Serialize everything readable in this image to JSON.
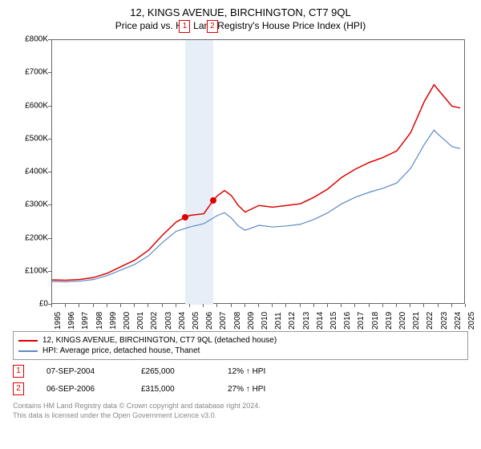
{
  "title": "12, KINGS AVENUE, BIRCHINGTON, CT7 9QL",
  "subtitle": "Price paid vs. HM Land Registry's House Price Index (HPI)",
  "chart": {
    "type": "line",
    "xlim": [
      1995,
      2025
    ],
    "ylim": [
      0,
      800000
    ],
    "ytick_step": 100000,
    "yticks": [
      "£0",
      "£100K",
      "£200K",
      "£300K",
      "£400K",
      "£500K",
      "£600K",
      "£700K",
      "£800K"
    ],
    "xticks": [
      1995,
      1996,
      1997,
      1998,
      1999,
      2000,
      2001,
      2002,
      2003,
      2004,
      2005,
      2006,
      2007,
      2008,
      2009,
      2010,
      2011,
      2012,
      2013,
      2014,
      2015,
      2016,
      2017,
      2018,
      2019,
      2020,
      2021,
      2022,
      2023,
      2024,
      2025
    ],
    "background_color": "#ffffff",
    "axis_color": "#666666",
    "highlight_band": {
      "start": 2004.68,
      "end": 2006.68,
      "color": "#e8eef7"
    },
    "series": [
      {
        "name": "property",
        "label": "12, KINGS AVENUE, BIRCHINGTON, CT7 9QL (detached house)",
        "color": "#dd0000",
        "width": 1.5,
        "data": [
          [
            1995,
            75000
          ],
          [
            1996,
            74000
          ],
          [
            1997,
            76000
          ],
          [
            1998,
            82000
          ],
          [
            1999,
            95000
          ],
          [
            2000,
            115000
          ],
          [
            2001,
            135000
          ],
          [
            2002,
            165000
          ],
          [
            2003,
            210000
          ],
          [
            2004,
            250000
          ],
          [
            2004.68,
            265000
          ],
          [
            2005,
            270000
          ],
          [
            2006,
            275000
          ],
          [
            2006.68,
            315000
          ],
          [
            2007,
            330000
          ],
          [
            2007.5,
            345000
          ],
          [
            2008,
            330000
          ],
          [
            2008.5,
            300000
          ],
          [
            2009,
            280000
          ],
          [
            2010,
            300000
          ],
          [
            2011,
            295000
          ],
          [
            2012,
            300000
          ],
          [
            2013,
            305000
          ],
          [
            2014,
            325000
          ],
          [
            2015,
            350000
          ],
          [
            2016,
            385000
          ],
          [
            2017,
            410000
          ],
          [
            2018,
            430000
          ],
          [
            2019,
            445000
          ],
          [
            2020,
            465000
          ],
          [
            2021,
            520000
          ],
          [
            2022,
            615000
          ],
          [
            2022.7,
            665000
          ],
          [
            2023,
            650000
          ],
          [
            2024,
            600000
          ],
          [
            2024.6,
            595000
          ]
        ]
      },
      {
        "name": "hpi",
        "label": "HPI: Average price, detached house, Thanet",
        "color": "#5b8ac6",
        "width": 1.2,
        "data": [
          [
            1995,
            70000
          ],
          [
            1996,
            69000
          ],
          [
            1997,
            71000
          ],
          [
            1998,
            76000
          ],
          [
            1999,
            88000
          ],
          [
            2000,
            105000
          ],
          [
            2001,
            122000
          ],
          [
            2002,
            148000
          ],
          [
            2003,
            188000
          ],
          [
            2004,
            222000
          ],
          [
            2005,
            235000
          ],
          [
            2006,
            245000
          ],
          [
            2007,
            270000
          ],
          [
            2007.5,
            278000
          ],
          [
            2008,
            262000
          ],
          [
            2008.5,
            238000
          ],
          [
            2009,
            225000
          ],
          [
            2010,
            240000
          ],
          [
            2011,
            235000
          ],
          [
            2012,
            238000
          ],
          [
            2013,
            243000
          ],
          [
            2014,
            258000
          ],
          [
            2015,
            278000
          ],
          [
            2016,
            305000
          ],
          [
            2017,
            325000
          ],
          [
            2018,
            340000
          ],
          [
            2019,
            352000
          ],
          [
            2020,
            368000
          ],
          [
            2021,
            412000
          ],
          [
            2022,
            485000
          ],
          [
            2022.7,
            528000
          ],
          [
            2023,
            515000
          ],
          [
            2024,
            478000
          ],
          [
            2024.6,
            472000
          ]
        ]
      }
    ],
    "sale_markers": [
      {
        "num": "1",
        "x": 2004.68,
        "y": 265000,
        "label_y": 0.02
      },
      {
        "num": "2",
        "x": 2006.68,
        "y": 315000,
        "label_y": 0.02
      }
    ]
  },
  "sales": [
    {
      "num": "1",
      "date": "07-SEP-2004",
      "price": "£265,000",
      "delta": "12% ↑ HPI"
    },
    {
      "num": "2",
      "date": "06-SEP-2006",
      "price": "£315,000",
      "delta": "27% ↑ HPI"
    }
  ],
  "footer_line1": "Contains HM Land Registry data © Crown copyright and database right 2024.",
  "footer_line2": "This data is licensed under the Open Government Licence v3.0."
}
